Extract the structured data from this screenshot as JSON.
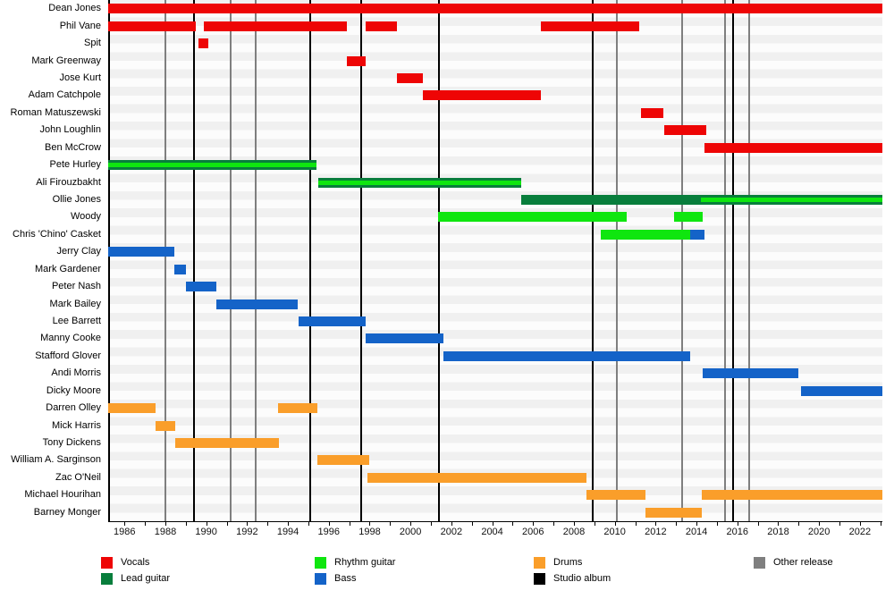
{
  "chart_data": {
    "type": "bar",
    "variant": "band-member-timeline-gantt",
    "axis": {
      "min": 1985.2,
      "max": 2023.1,
      "tick_start": 1986,
      "tick_end": 2023,
      "tick_step": 1,
      "label_start": 1986,
      "label_end": 2022,
      "label_step": 2,
      "tick_labels": [
        "1986",
        "1988",
        "1990",
        "1992",
        "1994",
        "1996",
        "1998",
        "2000",
        "2002",
        "2004",
        "2006",
        "2008",
        "2010",
        "2012",
        "2014",
        "2016",
        "2018",
        "2020",
        "2022"
      ]
    },
    "colors": {
      "vocals": "#ee0505",
      "lead": "#087e3c",
      "rhythm": "#0fe60f",
      "bass": "#1463c8",
      "drums": "#fa9e2a",
      "studio": "#000000",
      "other": "#7f7f7f"
    },
    "members": [
      {
        "name": "Dean Jones",
        "bars": [
          {
            "role": "vocals",
            "from": 1985.2,
            "to": 2023.1
          }
        ]
      },
      {
        "name": "Phil Vane",
        "bars": [
          {
            "role": "vocals",
            "from": 1985.2,
            "to": 1989.5
          },
          {
            "role": "vocals",
            "from": 1989.9,
            "to": 1996.9
          },
          {
            "role": "vocals",
            "from": 1997.8,
            "to": 1999.35
          },
          {
            "role": "vocals",
            "from": 2006.4,
            "to": 2011.2
          }
        ]
      },
      {
        "name": "Spit",
        "bars": [
          {
            "role": "vocals",
            "from": 1989.6,
            "to": 1990.1
          }
        ]
      },
      {
        "name": "Mark Greenway",
        "bars": [
          {
            "role": "vocals",
            "from": 1996.9,
            "to": 1997.8
          }
        ]
      },
      {
        "name": "Jose Kurt",
        "bars": [
          {
            "role": "vocals",
            "from": 1999.35,
            "to": 2000.6
          }
        ]
      },
      {
        "name": "Adam Catchpole",
        "bars": [
          {
            "role": "vocals",
            "from": 2000.6,
            "to": 2006.4
          }
        ]
      },
      {
        "name": "Roman Matuszewski",
        "bars": [
          {
            "role": "vocals",
            "from": 2011.3,
            "to": 2012.4
          }
        ]
      },
      {
        "name": "John Loughlin",
        "bars": [
          {
            "role": "vocals",
            "from": 2012.4,
            "to": 2014.5
          }
        ]
      },
      {
        "name": "Ben McCrow",
        "bars": [
          {
            "role": "vocals",
            "from": 2014.4,
            "to": 2023.1
          }
        ]
      },
      {
        "name": "Pete Hurley",
        "bars": [
          {
            "role": "lead+rhythm",
            "from": 1985.2,
            "to": 1995.4
          }
        ]
      },
      {
        "name": "Ali Firouzbakht",
        "bars": [
          {
            "role": "lead+rhythm",
            "from": 1995.5,
            "to": 2005.4
          }
        ]
      },
      {
        "name": "Ollie Jones",
        "bars": [
          {
            "role": "lead",
            "from": 2005.4,
            "to": 2014.2
          },
          {
            "role": "lead+rhythm",
            "from": 2014.2,
            "to": 2023.1
          }
        ]
      },
      {
        "name": "Woody",
        "bars": [
          {
            "role": "rhythm",
            "from": 2001.35,
            "to": 2010.6
          },
          {
            "role": "rhythm",
            "from": 2012.9,
            "to": 2014.3
          }
        ]
      },
      {
        "name": "Chris 'Chino' Casket",
        "bars": [
          {
            "role": "rhythm",
            "from": 2009.3,
            "to": 2013.7
          },
          {
            "role": "bass",
            "from": 2013.7,
            "to": 2014.4
          }
        ]
      },
      {
        "name": "Jerry Clay",
        "bars": [
          {
            "role": "bass",
            "from": 1985.2,
            "to": 1988.45
          }
        ]
      },
      {
        "name": "Mark Gardener",
        "bars": [
          {
            "role": "bass",
            "from": 1988.45,
            "to": 1989.0
          }
        ]
      },
      {
        "name": "Peter Nash",
        "bars": [
          {
            "role": "bass",
            "from": 1989.0,
            "to": 1990.5
          }
        ]
      },
      {
        "name": "Mark Bailey",
        "bars": [
          {
            "role": "bass",
            "from": 1990.5,
            "to": 1994.5
          }
        ]
      },
      {
        "name": "Lee Barrett",
        "bars": [
          {
            "role": "bass",
            "from": 1994.5,
            "to": 1997.8
          }
        ]
      },
      {
        "name": "Manny Cooke",
        "bars": [
          {
            "role": "bass",
            "from": 1997.8,
            "to": 2001.6
          }
        ]
      },
      {
        "name": "Stafford Glover",
        "bars": [
          {
            "role": "bass",
            "from": 2001.6,
            "to": 2013.7
          }
        ]
      },
      {
        "name": "Andi Morris",
        "bars": [
          {
            "role": "bass",
            "from": 2014.3,
            "to": 2019.0
          }
        ]
      },
      {
        "name": "Dicky Moore",
        "bars": [
          {
            "role": "bass",
            "from": 2019.1,
            "to": 2023.1
          }
        ]
      },
      {
        "name": "Darren Olley",
        "bars": [
          {
            "role": "drums",
            "from": 1985.2,
            "to": 1987.5
          },
          {
            "role": "drums",
            "from": 1993.5,
            "to": 1995.45
          }
        ]
      },
      {
        "name": "Mick Harris",
        "bars": [
          {
            "role": "drums",
            "from": 1987.5,
            "to": 1988.5
          }
        ]
      },
      {
        "name": "Tony Dickens",
        "bars": [
          {
            "role": "drums",
            "from": 1988.5,
            "to": 1993.55
          }
        ]
      },
      {
        "name": "William A. Sarginson",
        "bars": [
          {
            "role": "drums",
            "from": 1995.45,
            "to": 1998.0
          }
        ]
      },
      {
        "name": "Zac O'Neil",
        "bars": [
          {
            "role": "drums",
            "from": 1997.9,
            "to": 2008.6
          }
        ]
      },
      {
        "name": "Michael Hourihan",
        "bars": [
          {
            "role": "drums",
            "from": 2008.6,
            "to": 2011.5
          },
          {
            "role": "drums",
            "from": 2014.25,
            "to": 2023.1
          }
        ]
      },
      {
        "name": "Barney Monger",
        "bars": [
          {
            "role": "drums",
            "from": 2011.5,
            "to": 2014.25
          }
        ]
      }
    ],
    "releases": [
      {
        "year": 1988.0,
        "type": "other"
      },
      {
        "year": 1989.4,
        "type": "studio"
      },
      {
        "year": 1991.2,
        "type": "other"
      },
      {
        "year": 1992.4,
        "type": "other"
      },
      {
        "year": 1995.1,
        "type": "studio"
      },
      {
        "year": 1997.6,
        "type": "studio"
      },
      {
        "year": 2001.4,
        "type": "studio"
      },
      {
        "year": 2008.9,
        "type": "studio"
      },
      {
        "year": 2010.1,
        "type": "other"
      },
      {
        "year": 2013.3,
        "type": "other"
      },
      {
        "year": 2015.4,
        "type": "other"
      },
      {
        "year": 2015.8,
        "type": "studio"
      },
      {
        "year": 2016.6,
        "type": "other"
      }
    ],
    "legend": {
      "columns": [
        {
          "items": [
            {
              "label": "Vocals",
              "color": "vocals"
            },
            {
              "label": "Lead guitar",
              "color": "lead"
            }
          ]
        },
        {
          "items": [
            {
              "label": "Rhythm guitar",
              "color": "rhythm"
            },
            {
              "label": "Bass",
              "color": "bass"
            }
          ]
        },
        {
          "items": [
            {
              "label": "Drums",
              "color": "drums"
            },
            {
              "label": "Studio album",
              "color": "studio"
            }
          ]
        },
        {
          "items": [
            {
              "label": "Other release",
              "color": "other"
            }
          ]
        }
      ]
    }
  }
}
